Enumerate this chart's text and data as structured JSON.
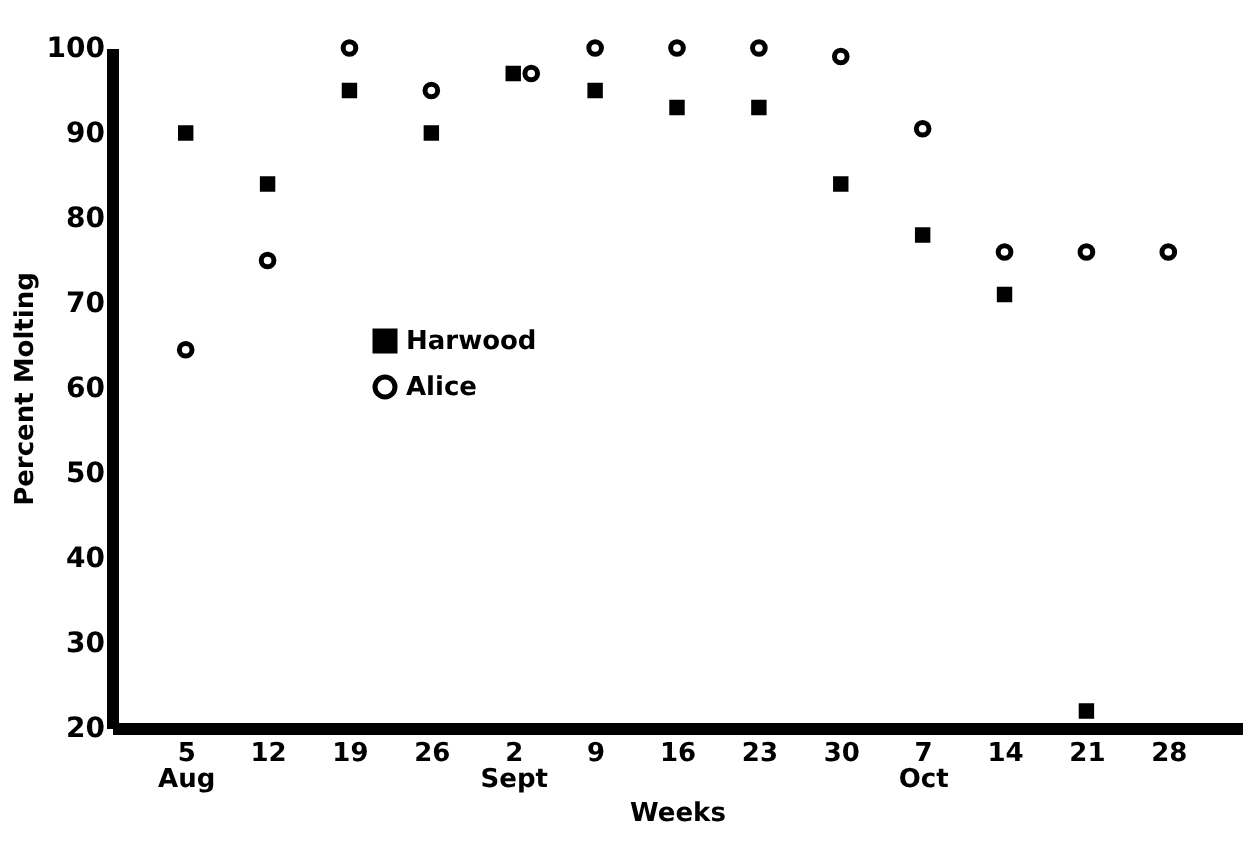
{
  "chart_data": {
    "type": "scatter",
    "xlabel": "Weeks",
    "ylabel": "Percent Molting",
    "categories": [
      "5\nAug",
      "12",
      "19",
      "26",
      "2\nSept",
      "9",
      "16",
      "23",
      "30",
      "7\nOct",
      "14",
      "21",
      "28"
    ],
    "series": [
      {
        "name": "Harwood",
        "color": "#000000",
        "marker": "square",
        "values": [
          90,
          84,
          95,
          90,
          97,
          95,
          93,
          93,
          84,
          78,
          71,
          22,
          null
        ]
      },
      {
        "name": "Alice",
        "color": "#000000",
        "marker": "circle",
        "values": [
          64.5,
          75,
          100,
          95,
          97,
          100,
          100,
          100,
          99,
          90.5,
          76,
          76,
          76
        ]
      }
    ],
    "ylim": [
      20,
      100
    ],
    "yticks": [
      20,
      30,
      40,
      50,
      60,
      70,
      80,
      90,
      100
    ],
    "grid": false,
    "legend": "left"
  }
}
